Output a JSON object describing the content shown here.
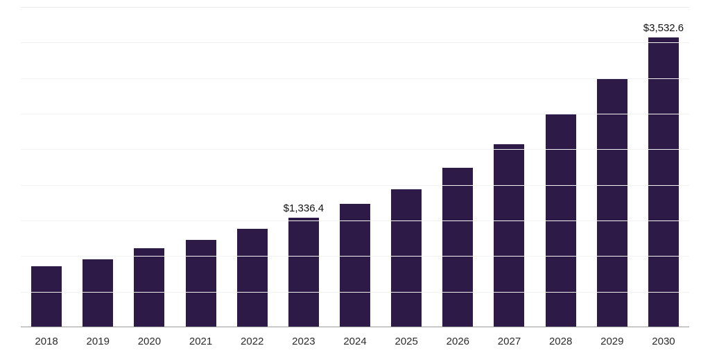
{
  "chart_data": {
    "type": "bar",
    "title": "",
    "xlabel": "",
    "ylabel": "",
    "categories": [
      "2018",
      "2019",
      "2020",
      "2021",
      "2022",
      "2023",
      "2024",
      "2025",
      "2026",
      "2027",
      "2028",
      "2029",
      "2030"
    ],
    "values": [
      740,
      830,
      960,
      1060,
      1200,
      1336.4,
      1500,
      1680,
      1940,
      2230,
      2600,
      3030,
      3532.6
    ],
    "labeled_points": [
      {
        "category": "2023",
        "label": "$1,336.4"
      },
      {
        "category": "2030",
        "label": "$3,532.6"
      }
    ],
    "ylim": [
      0,
      3900
    ],
    "grid": "horizontal",
    "gridline_count": 9,
    "legend_position": "none",
    "colors": {
      "bar": "#2e1a47",
      "gridline": "#f2f2f2",
      "top_gridline": "#e8e8e8",
      "axis_line": "#9a9a9a",
      "label_text": "#111111",
      "tick_text": "#2b2b2b",
      "background": "#ffffff"
    }
  }
}
